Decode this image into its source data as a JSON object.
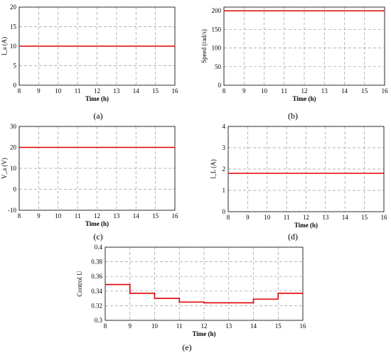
{
  "chart_data": [
    {
      "id": "a",
      "type": "line",
      "caption": "(a)",
      "xlabel": "Time (h)",
      "ylabel": "I_a (A)",
      "xlim": [
        8,
        16
      ],
      "ylim": [
        0,
        20
      ],
      "xticks": [
        "8",
        "9",
        "10",
        "11",
        "12",
        "13",
        "14",
        "15",
        "16"
      ],
      "yticks": [
        "0",
        "5",
        "10",
        "15",
        "20"
      ],
      "series": [
        {
          "color": "#e00000",
          "x": [
            8,
            16
          ],
          "y": [
            10,
            10
          ],
          "step": false
        }
      ]
    },
    {
      "id": "b",
      "type": "line",
      "caption": "(b)",
      "xlabel": "Time (h)",
      "ylabel": "Speed (rad/s)",
      "xlim": [
        8,
        16
      ],
      "ylim": [
        0,
        210
      ],
      "xticks": [
        "8",
        "9",
        "10",
        "11",
        "12",
        "13",
        "14",
        "15",
        "16"
      ],
      "yticks": [
        "0",
        "50",
        "100",
        "150",
        "200"
      ],
      "series": [
        {
          "color": "#e00000",
          "x": [
            8,
            16
          ],
          "y": [
            200,
            200
          ],
          "step": false
        }
      ]
    },
    {
      "id": "c",
      "type": "line",
      "caption": "(c)",
      "xlabel": "Time (h)",
      "ylabel": "V_a (V)",
      "xlim": [
        8,
        16
      ],
      "ylim": [
        -10,
        30
      ],
      "xticks": [
        "8",
        "9",
        "10",
        "11",
        "12",
        "13",
        "14",
        "15",
        "16"
      ],
      "yticks": [
        "-10",
        "0",
        "10",
        "20",
        "30"
      ],
      "series": [
        {
          "color": "#e00000",
          "x": [
            8,
            16
          ],
          "y": [
            20,
            20
          ],
          "step": false
        }
      ]
    },
    {
      "id": "d",
      "type": "line",
      "caption": "(d)",
      "xlabel": "Time (h)",
      "ylabel": "I_L (A)",
      "xlim": [
        8,
        16
      ],
      "ylim": [
        0,
        4
      ],
      "xticks": [
        "8",
        "9",
        "10",
        "11",
        "12",
        "13",
        "14",
        "15",
        "16"
      ],
      "yticks": [
        "0",
        "1",
        "2",
        "3",
        "4"
      ],
      "series": [
        {
          "color": "#e00000",
          "x": [
            8,
            16
          ],
          "y": [
            1.8,
            1.8
          ],
          "step": false
        }
      ]
    },
    {
      "id": "e",
      "type": "line",
      "caption": "(e)",
      "xlabel": "Time (h)",
      "ylabel": "Control U",
      "xlim": [
        8,
        16
      ],
      "ylim": [
        0.3,
        0.4
      ],
      "xticks": [
        "8",
        "9",
        "10",
        "11",
        "12",
        "13",
        "14",
        "15",
        "16"
      ],
      "yticks": [
        "0.3",
        "0.32",
        "0.34",
        "0.36",
        "0.38",
        "0.4"
      ],
      "series": [
        {
          "color": "#e00000",
          "step": true,
          "x": [
            8,
            9,
            10,
            11,
            12,
            14,
            15,
            16
          ],
          "y": [
            0.349,
            0.337,
            0.33,
            0.325,
            0.324,
            0.329,
            0.337,
            0.337
          ]
        }
      ]
    }
  ]
}
